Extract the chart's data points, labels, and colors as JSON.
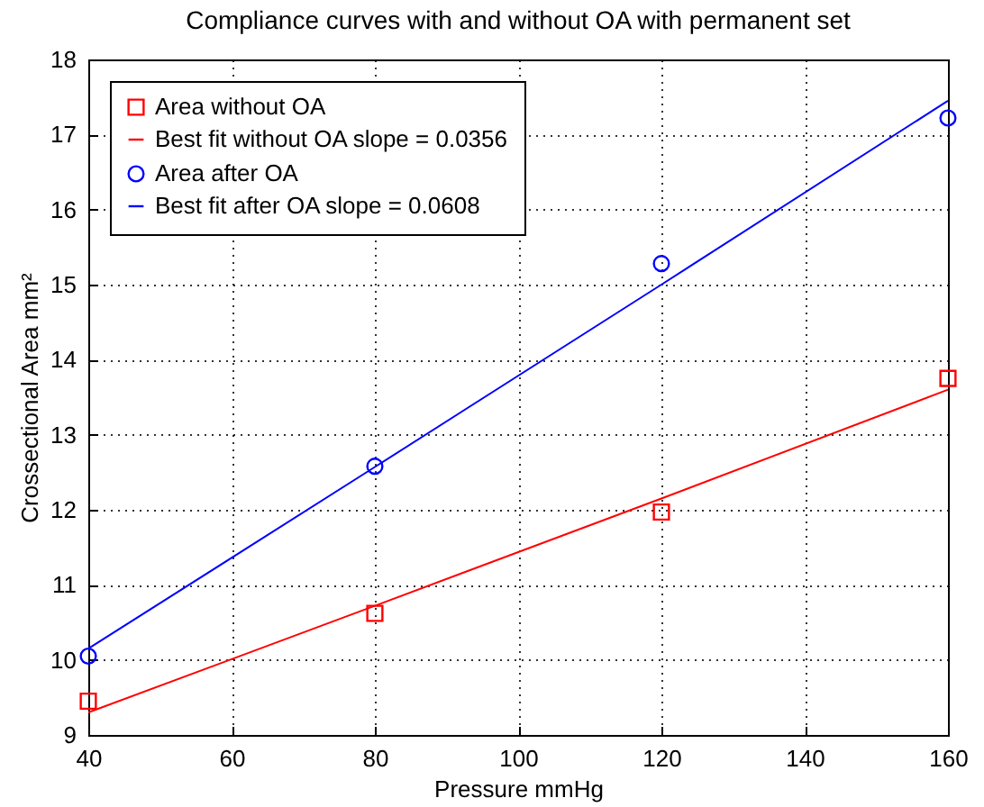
{
  "chart_data": {
    "type": "scatter",
    "title": "Compliance curves with and without OA with permanent set",
    "xlabel": "Pressure mmHg",
    "ylabel": "Crossectional Area mm²",
    "x": [
      40,
      80,
      120,
      160
    ],
    "series": [
      {
        "name": "Area without OA",
        "color": "#ff0000",
        "marker": "square",
        "values": [
          9.45,
          10.62,
          11.97,
          13.75
        ]
      },
      {
        "name": "Best fit without OA slope = 0.0356",
        "type": "line",
        "color": "#ff0000",
        "values": [
          9.3,
          10.72,
          12.15,
          13.6
        ]
      },
      {
        "name": "Area after OA",
        "color": "#0000ff",
        "marker": "circle",
        "values": [
          10.05,
          12.58,
          15.28,
          17.22
        ]
      },
      {
        "name": "Best fit after OA slope = 0.0608",
        "type": "line",
        "color": "#0000ff",
        "values": [
          10.15,
          12.57,
          15.0,
          17.45
        ]
      }
    ],
    "xlim": [
      40,
      160
    ],
    "xticks": [
      40,
      60,
      80,
      100,
      120,
      140,
      160
    ],
    "ylim": [
      9,
      18
    ],
    "yticks": [
      9,
      10,
      11,
      12,
      13,
      14,
      15,
      16,
      17,
      18
    ],
    "grid": true,
    "legend": "top left"
  }
}
